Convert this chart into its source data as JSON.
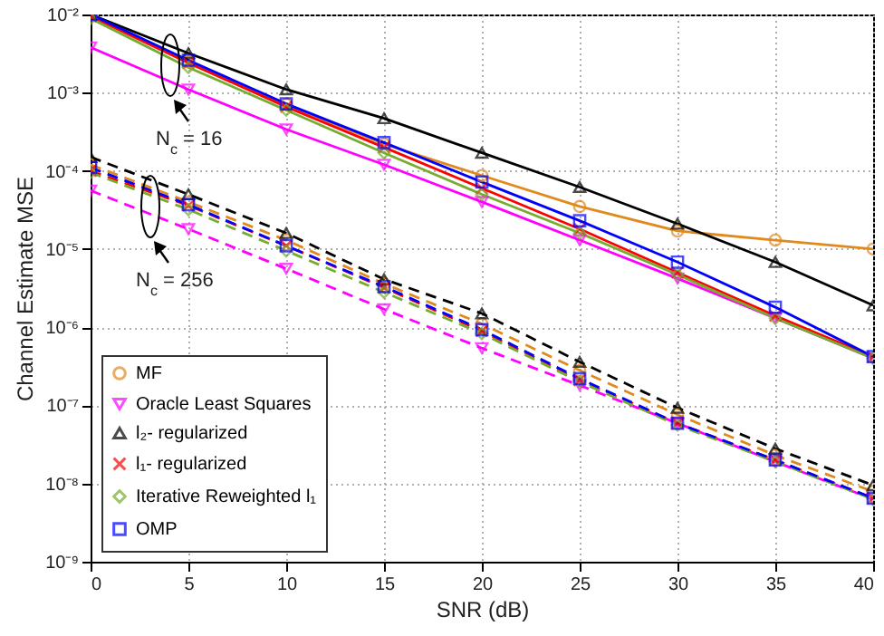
{
  "chart_data": {
    "type": "line",
    "xlabel": "SNR (dB)",
    "ylabel": "Channel Estimate MSE",
    "x": [
      0,
      5,
      10,
      15,
      20,
      25,
      30,
      35,
      40
    ],
    "xlim": [
      0,
      40
    ],
    "xticks": [
      0,
      5,
      10,
      15,
      20,
      25,
      30,
      35,
      40
    ],
    "log": "y",
    "ylim": [
      1e-09,
      0.01
    ],
    "yticks": [
      {
        "value": 1e-09,
        "label": "10⁻⁹"
      },
      {
        "value": 1e-08,
        "label": "10⁻⁸"
      },
      {
        "value": 1e-07,
        "label": "10⁻⁷"
      },
      {
        "value": 1e-06,
        "label": "10⁻⁶"
      },
      {
        "value": 1e-05,
        "label": "10⁻⁵"
      },
      {
        "value": 0.0001,
        "label": "10⁻⁴"
      },
      {
        "value": 0.001,
        "label": "10⁻³"
      },
      {
        "value": 0.01,
        "label": "10⁻²"
      }
    ],
    "grid": true,
    "legend": "bottom left",
    "series": [
      {
        "name": "MF",
        "color": "#e08a1e",
        "marker": "circle",
        "line_style": "solid",
        "values": [
          0.01,
          0.0025,
          0.00071,
          0.00022,
          8.7e-05,
          3.5e-05,
          1.7e-05,
          1.3e-05,
          1e-05
        ]
      },
      {
        "name": "Oracle Least Squares",
        "color": "#ff00ff",
        "marker": "triangle-down",
        "line_style": "solid",
        "values": [
          0.0038,
          0.0011,
          0.00034,
          0.00012,
          4e-05,
          1.3e-05,
          4.2e-06,
          1.3e-06,
          4e-07
        ]
      },
      {
        "name": "l₂- regularized",
        "color": "#000000",
        "marker": "triangle",
        "line_style": "solid",
        "values": [
          0.01,
          0.0032,
          0.0011,
          0.00047,
          0.00017,
          6.2e-05,
          2.1e-05,
          6.8e-06,
          1.9e-06
        ]
      },
      {
        "name": "l₁- regularized",
        "color": "#ff0000",
        "marker": "cross",
        "line_style": "solid",
        "values": [
          0.0095,
          0.0024,
          0.00066,
          0.0002,
          6e-05,
          1.8e-05,
          5e-06,
          1.4e-06,
          4.2e-07
        ]
      },
      {
        "name": "Iterative Reweighted l₁",
        "color": "#77ac30",
        "marker": "diamond",
        "line_style": "solid",
        "values": [
          0.0089,
          0.0021,
          0.0006,
          0.00017,
          5e-05,
          1.6e-05,
          4.7e-06,
          1.3e-06,
          4e-07
        ]
      },
      {
        "name": "OMP",
        "color": "#0000ff",
        "marker": "square",
        "line_style": "solid",
        "values": [
          0.01,
          0.0026,
          0.00072,
          0.00023,
          7.2e-05,
          2.3e-05,
          6.8e-06,
          1.8e-06,
          4.2e-07
        ]
      },
      {
        "color": "#e08a1e",
        "marker": "circle",
        "line_style": "dashed",
        "values": [
          0.00012,
          4e-05,
          1.3e-05,
          3.6e-06,
          1.1e-06,
          2.8e-07,
          7.6e-08,
          2.3e-08,
          7.9e-09
        ]
      },
      {
        "color": "#ff00ff",
        "marker": "triangle-down",
        "line_style": "dashed",
        "values": [
          5.6e-05,
          1.8e-05,
          5.6e-06,
          1.7e-06,
          5.4e-07,
          1.8e-07,
          5.9e-08,
          1.9e-08,
          6.3e-09
        ]
      },
      {
        "color": "#000000",
        "marker": "triangle",
        "line_style": "dashed",
        "values": [
          0.00015,
          5e-05,
          1.6e-05,
          4.1e-06,
          1.5e-06,
          3.6e-07,
          9.3e-08,
          2.8e-08,
          9.5e-09
        ]
      },
      {
        "color": "#ff0000",
        "marker": "cross",
        "line_style": "dashed",
        "values": [
          0.0001,
          3.6e-05,
          1.1e-05,
          3.2e-06,
          8.9e-07,
          2.1e-07,
          5.9e-08,
          2e-08,
          6.5e-09
        ]
      },
      {
        "color": "#77ac30",
        "marker": "diamond",
        "line_style": "dashed",
        "values": [
          9.5e-05,
          3.2e-05,
          9.5e-06,
          2.8e-06,
          8.3e-07,
          2e-07,
          5.6e-08,
          1.9e-08,
          6.3e-09
        ]
      },
      {
        "color": "#0000ff",
        "marker": "square",
        "line_style": "dashed",
        "values": [
          0.00011,
          3.7e-05,
          1.1e-05,
          3.3e-06,
          9.3e-07,
          2.2e-07,
          5.9e-08,
          2e-08,
          6.5e-09
        ]
      }
    ],
    "annotations": [
      "N$_{c}$ = 16",
      "N$_{c}$ = 256"
    ]
  }
}
